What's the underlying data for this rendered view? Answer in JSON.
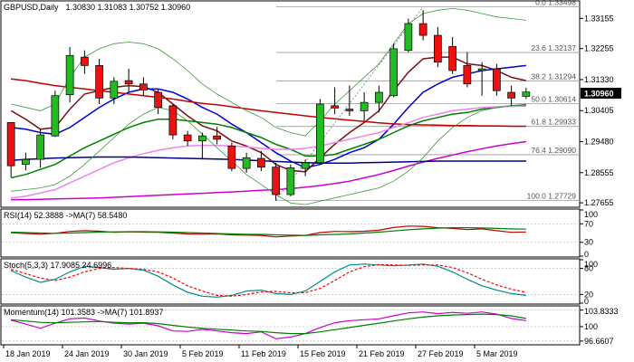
{
  "chart_data": {
    "type": "candlestick",
    "title": "GBPUSD,Daily",
    "ohlc_header": "1.30830 1.31083 1.30752 1.30960",
    "last_price_label": "1.30960",
    "last_price": 1.3096,
    "price_axis_ticks": [
      "1.33155",
      "1.32255",
      "1.31330",
      "1.30405",
      "1.29480",
      "1.28555",
      "1.27655"
    ],
    "ylim": [
      1.2755,
      1.3365
    ],
    "date_labels": [
      {
        "index": 0,
        "label": "18 Jan 2019"
      },
      {
        "index": 4,
        "label": "24 Jan 2019"
      },
      {
        "index": 8,
        "label": "30 Jan 2019"
      },
      {
        "index": 12,
        "label": "5 Feb 2019"
      },
      {
        "index": 16,
        "label": "11 Feb 2019"
      },
      {
        "index": 20,
        "label": "15 Feb 2019"
      },
      {
        "index": 24,
        "label": "21 Feb 2019"
      },
      {
        "index": 28,
        "label": "27 Feb 2019"
      },
      {
        "index": 32,
        "label": "5 Mar 2019"
      }
    ],
    "candles": [
      {
        "o": 1.3005,
        "h": 1.3005,
        "l": 1.2842,
        "c": 1.2876
      },
      {
        "o": 1.288,
        "h": 1.2915,
        "l": 1.2862,
        "c": 1.2895
      },
      {
        "o": 1.2895,
        "h": 1.2985,
        "l": 1.287,
        "c": 1.2968
      },
      {
        "o": 1.2965,
        "h": 1.31,
        "l": 1.2962,
        "c": 1.3085
      },
      {
        "o": 1.3088,
        "h": 1.323,
        "l": 1.3065,
        "c": 1.3205
      },
      {
        "o": 1.32,
        "h": 1.322,
        "l": 1.315,
        "c": 1.3175
      },
      {
        "o": 1.3175,
        "h": 1.3195,
        "l": 1.306,
        "c": 1.3078
      },
      {
        "o": 1.3078,
        "h": 1.314,
        "l": 1.306,
        "c": 1.3128
      },
      {
        "o": 1.313,
        "h": 1.3165,
        "l": 1.3095,
        "c": 1.312
      },
      {
        "o": 1.312,
        "h": 1.314,
        "l": 1.3085,
        "c": 1.3102
      },
      {
        "o": 1.3095,
        "h": 1.3105,
        "l": 1.303,
        "c": 1.305
      },
      {
        "o": 1.3055,
        "h": 1.306,
        "l": 1.2955,
        "c": 1.2968
      },
      {
        "o": 1.2968,
        "h": 1.298,
        "l": 1.2935,
        "c": 1.295
      },
      {
        "o": 1.295,
        "h": 1.2975,
        "l": 1.2895,
        "c": 1.2965
      },
      {
        "o": 1.2965,
        "h": 1.2992,
        "l": 1.294,
        "c": 1.2955
      },
      {
        "o": 1.2935,
        "h": 1.2945,
        "l": 1.286,
        "c": 1.2868
      },
      {
        "o": 1.2868,
        "h": 1.2915,
        "l": 1.2855,
        "c": 1.29
      },
      {
        "o": 1.2898,
        "h": 1.292,
        "l": 1.286,
        "c": 1.2872
      },
      {
        "o": 1.2872,
        "h": 1.2885,
        "l": 1.2772,
        "c": 1.279
      },
      {
        "o": 1.279,
        "h": 1.288,
        "l": 1.2785,
        "c": 1.287
      },
      {
        "o": 1.2868,
        "h": 1.2895,
        "l": 1.2845,
        "c": 1.2885
      },
      {
        "o": 1.2885,
        "h": 1.3075,
        "l": 1.288,
        "c": 1.306
      },
      {
        "o": 1.3055,
        "h": 1.311,
        "l": 1.303,
        "c": 1.3048
      },
      {
        "o": 1.3045,
        "h": 1.3115,
        "l": 1.3025,
        "c": 1.304
      },
      {
        "o": 1.304,
        "h": 1.3095,
        "l": 1.301,
        "c": 1.3065
      },
      {
        "o": 1.3065,
        "h": 1.3115,
        "l": 1.3035,
        "c": 1.3095
      },
      {
        "o": 1.3085,
        "h": 1.324,
        "l": 1.308,
        "c": 1.3225
      },
      {
        "o": 1.322,
        "h": 1.3315,
        "l": 1.3215,
        "c": 1.33
      },
      {
        "o": 1.33,
        "h": 1.334,
        "l": 1.325,
        "c": 1.3265
      },
      {
        "o": 1.3265,
        "h": 1.329,
        "l": 1.317,
        "c": 1.3185
      },
      {
        "o": 1.3232,
        "h": 1.326,
        "l": 1.315,
        "c": 1.316
      },
      {
        "o": 1.3175,
        "h": 1.3215,
        "l": 1.311,
        "c": 1.312
      },
      {
        "o": 1.316,
        "h": 1.3185,
        "l": 1.3085,
        "c": 1.3165
      },
      {
        "o": 1.3165,
        "h": 1.318,
        "l": 1.3085,
        "c": 1.31
      },
      {
        "o": 1.3095,
        "h": 1.3115,
        "l": 1.3055,
        "c": 1.3078
      },
      {
        "o": 1.3083,
        "h": 1.3108,
        "l": 1.3075,
        "c": 1.3096
      }
    ],
    "fibonacci_levels": [
      {
        "label": "0.0 1.33498",
        "value": 1.33498
      },
      {
        "label": "23.6 1.32137",
        "value": 1.32137
      },
      {
        "label": "38.2 1.31294",
        "value": 1.31294
      },
      {
        "label": "50.0 1.30614",
        "value": 1.30614
      },
      {
        "label": "61.8 1.29933",
        "value": 1.29933
      },
      {
        "label": "76.4 1.29090",
        "value": 1.2909
      },
      {
        "label": "100.0 1.27729",
        "value": 1.27729
      }
    ],
    "price_overlays": [
      {
        "color": "#7a1010",
        "values": [
          1.304,
          1.3015,
          1.2985,
          1.299,
          1.3045,
          1.309,
          1.31,
          1.311,
          1.3115,
          1.3112,
          1.3095,
          1.306,
          1.3025,
          1.2995,
          1.298,
          1.295,
          1.2935,
          1.2915,
          1.288,
          1.2862,
          1.2858,
          1.29,
          1.294,
          1.2975,
          1.3005,
          1.304,
          1.31,
          1.3155,
          1.3195,
          1.32,
          1.32,
          1.318,
          1.3175,
          1.316,
          1.314,
          1.313
        ]
      },
      {
        "color": "#0000cc",
        "values": [
          1.299,
          1.2985,
          1.2975,
          1.297,
          1.299,
          1.302,
          1.305,
          1.3075,
          1.3095,
          1.3105,
          1.3105,
          1.3095,
          1.3075,
          1.305,
          1.303,
          1.3,
          1.2975,
          1.2945,
          1.2915,
          1.289,
          1.287,
          1.288,
          1.2895,
          1.2915,
          1.293,
          1.2955,
          1.3,
          1.305,
          1.3095,
          1.312,
          1.314,
          1.315,
          1.316,
          1.3165,
          1.317,
          1.3175
        ]
      },
      {
        "color": "#008000",
        "values": [
          1.284,
          1.285,
          1.2865,
          1.288,
          1.2905,
          1.293,
          1.295,
          1.297,
          1.299,
          1.3005,
          1.3015,
          1.3015,
          1.301,
          1.3005,
          1.3,
          1.299,
          1.2975,
          1.296,
          1.294,
          1.2925,
          1.2905,
          1.2905,
          1.291,
          1.2925,
          1.294,
          1.2955,
          1.2975,
          1.2995,
          1.301,
          1.302,
          1.303,
          1.3035,
          1.3045,
          1.305,
          1.3055,
          1.3058
        ]
      },
      {
        "color": "#c00000",
        "values": [
          1.3135,
          1.313,
          1.3122,
          1.3115,
          1.311,
          1.3105,
          1.31,
          1.3095,
          1.309,
          1.3085,
          1.308,
          1.3075,
          1.3068,
          1.3062,
          1.3058,
          1.3052,
          1.3046,
          1.304,
          1.3035,
          1.303,
          1.3025,
          1.302,
          1.3016,
          1.3012,
          1.3008,
          1.3004,
          1.3001,
          1.2999,
          1.2998,
          1.2997,
          1.2996,
          1.2996,
          1.2995,
          1.2995,
          1.2994,
          1.2994
        ]
      },
      {
        "color": "#ee82ee",
        "values": [
          1.278,
          1.2785,
          1.2795,
          1.2805,
          1.2825,
          1.2845,
          1.2865,
          1.2885,
          1.29,
          1.2912,
          1.2922,
          1.293,
          1.2935,
          1.2937,
          1.2937,
          1.2935,
          1.2932,
          1.2928,
          1.2925,
          1.2925,
          1.2928,
          1.2935,
          1.2945,
          1.2955,
          1.2965,
          1.2975,
          1.299,
          1.3005,
          1.302,
          1.303,
          1.304,
          1.3045,
          1.305,
          1.3052,
          1.3053,
          1.3054
        ]
      },
      {
        "color": "#cc00cc",
        "values": [
          1.2775,
          1.2775,
          1.2776,
          1.2777,
          1.2778,
          1.2779,
          1.278,
          1.2782,
          1.2784,
          1.2786,
          1.2788,
          1.279,
          1.2792,
          1.2794,
          1.2796,
          1.2798,
          1.28,
          1.2803,
          1.2805,
          1.2808,
          1.2812,
          1.2817,
          1.2823,
          1.283,
          1.284,
          1.285,
          1.2862,
          1.2875,
          1.2887,
          1.2898,
          1.2908,
          1.2918,
          1.2927,
          1.2935,
          1.2942,
          1.2948
        ]
      },
      {
        "color": "#000080",
        "values": [
          1.2892,
          1.2895,
          1.2897,
          1.2899,
          1.29,
          1.2901,
          1.2902,
          1.2902,
          1.2902,
          1.2901,
          1.29,
          1.2899,
          1.2898,
          1.2897,
          1.2896,
          1.2895,
          1.2893,
          1.2891,
          1.2889,
          1.2887,
          1.2885,
          1.2884,
          1.2884,
          1.2884,
          1.2885,
          1.2886,
          1.2887,
          1.2888,
          1.2889,
          1.289,
          1.289,
          1.289,
          1.289,
          1.289,
          1.289,
          1.289
        ]
      },
      {
        "color": "#3c9a3c",
        "values": [
          1.306,
          1.305,
          1.304,
          1.306,
          1.314,
          1.32,
          1.3225,
          1.324,
          1.3245,
          1.324,
          1.3225,
          1.3195,
          1.316,
          1.312,
          1.309,
          1.3065,
          1.304,
          1.302,
          1.299,
          1.2975,
          1.2965,
          1.301,
          1.306,
          1.31,
          1.314,
          1.318,
          1.324,
          1.33,
          1.333,
          1.334,
          1.3345,
          1.334,
          1.333,
          1.332,
          1.3315,
          1.331
        ]
      },
      {
        "color": "#3c9a3c",
        "values": [
          1.28,
          1.2805,
          1.281,
          1.282,
          1.2845,
          1.288,
          1.292,
          1.296,
          1.3,
          1.303,
          1.305,
          1.304,
          1.301,
          1.297,
          1.293,
          1.289,
          1.285,
          1.282,
          1.279,
          1.2765,
          1.276,
          1.277,
          1.278,
          1.279,
          1.28,
          1.281,
          1.283,
          1.286,
          1.29,
          1.295,
          1.299,
          1.302,
          1.304,
          1.305,
          1.3055,
          1.306
        ]
      }
    ],
    "indicators": [
      {
        "title": "RSI(14) 52.3888  ->MA(7) 58.5480",
        "ylim": [
          0,
          100
        ],
        "axis_ticks": [
          100,
          70,
          30,
          0
        ],
        "series": [
          {
            "color": "#c00000",
            "values": [
              50.5,
              49.0,
              47.5,
              49.5,
              53.5,
              55.0,
              54.0,
              51.5,
              52.5,
              52.0,
              51.5,
              50.0,
              48.0,
              47.5,
              48.0,
              46.0,
              45.5,
              45.0,
              41.5,
              43.5,
              45.0,
              51.0,
              53.5,
              53.0,
              54.0,
              56.0,
              62.0,
              65.0,
              64.5,
              61.5,
              60.0,
              57.5,
              59.0,
              55.0,
              51.5,
              52.4
            ]
          },
          {
            "color": "#008000",
            "values": [
              52.0,
              51.0,
              50.0,
              49.5,
              50.0,
              51.0,
              52.0,
              52.5,
              53.0,
              53.0,
              52.5,
              52.0,
              51.0,
              50.0,
              49.0,
              48.0,
              47.5,
              47.0,
              46.0,
              45.5,
              45.0,
              46.0,
              47.0,
              48.0,
              50.0,
              52.0,
              54.5,
              57.0,
              59.0,
              60.5,
              61.5,
              61.5,
              61.0,
              60.0,
              59.0,
              58.5
            ]
          }
        ]
      },
      {
        "title": "Stoch(5,3,3) 17.9085 24.6996",
        "ylim": [
          0,
          100
        ],
        "axis_ticks": [
          100,
          80,
          20,
          0
        ],
        "series": [
          {
            "color": "#008b8b",
            "values": [
              75,
              60,
              48,
              55,
              72,
              85,
              82,
              78,
              80,
              76,
              62,
              42,
              25,
              16,
              14,
              18,
              28,
              30,
              22,
              20,
              28,
              50,
              72,
              88,
              90,
              88,
              86,
              88,
              90,
              85,
              72,
              55,
              40,
              30,
              22,
              18
            ]
          },
          {
            "color": "#ff0000",
            "dashed": true,
            "values": [
              78,
              68,
              58,
              52,
              60,
              72,
              80,
              82,
              80,
              78,
              72,
              58,
              40,
              28,
              18,
              16,
              20,
              26,
              27,
              24,
              24,
              34,
              52,
              72,
              84,
              89,
              88,
              87,
              88,
              88,
              82,
              70,
              55,
              42,
              32,
              25
            ]
          }
        ]
      },
      {
        "title": "Momentum(14) 101.3583  ->MA(7) 101.8937",
        "ylim": [
          96.0,
          104.6
        ],
        "axis_ticks_labeled": [
          {
            "value": 103.8333,
            "label": "103.8333"
          },
          {
            "value": 100,
            "label": "100"
          },
          {
            "value": 96.6607,
            "label": "96.6607"
          }
        ],
        "series": [
          {
            "color": "#cc00cc",
            "values": [
              101.5,
              100.6,
              99.6,
              100.8,
              101.8,
              102.0,
              101.3,
              100.8,
              100.6,
              100.8,
              100.2,
              99.0,
              98.9,
              99.4,
              99.0,
              98.6,
              98.4,
              98.8,
              97.2,
              97.6,
              98.4,
              99.8,
              100.9,
              101.4,
              101.6,
              101.8,
              102.5,
              103.2,
              103.4,
              103.0,
              103.3,
              103.1,
              103.4,
              102.9,
              101.9,
              101.4
            ]
          },
          {
            "color": "#008000",
            "values": [
              101.6,
              101.3,
              101.0,
              100.9,
              101.0,
              101.1,
              101.2,
              101.0,
              100.9,
              100.9,
              100.7,
              100.3,
              99.9,
              99.6,
              99.4,
              99.2,
              99.0,
              98.9,
              98.6,
              98.4,
              98.4,
              98.8,
              99.3,
              99.8,
              100.3,
              100.8,
              101.3,
              101.8,
              102.2,
              102.5,
              102.7,
              102.8,
              102.9,
              102.8,
              102.5,
              101.9
            ]
          }
        ]
      }
    ]
  }
}
